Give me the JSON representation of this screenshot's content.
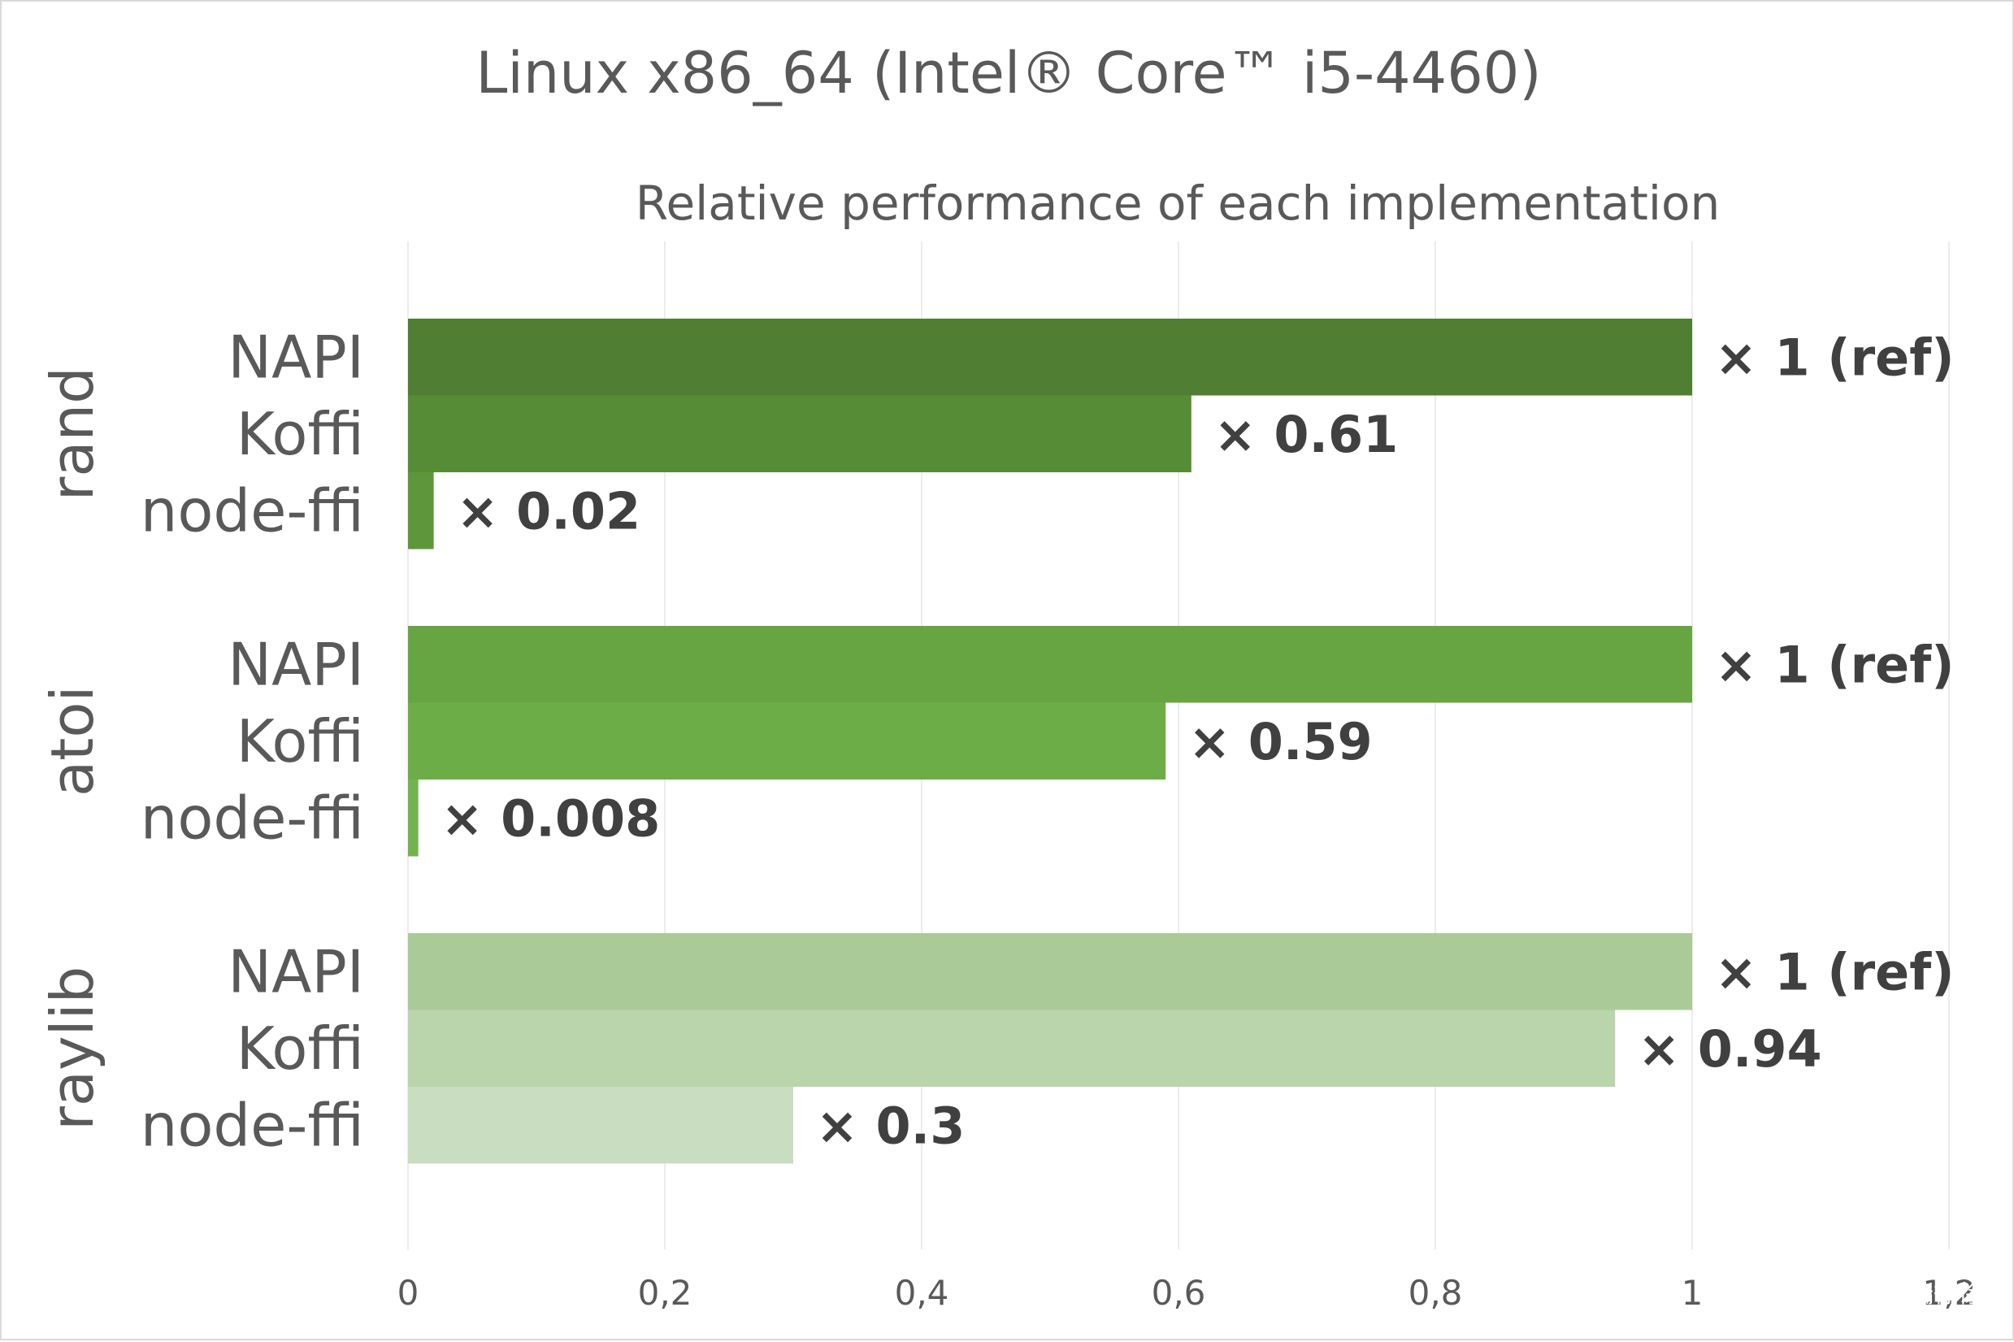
{
  "chart_data": {
    "type": "bar",
    "orientation": "horizontal",
    "title": "Linux x86_64 (Intel® Core™ i5-4460)",
    "subtitle": "Relative performance of each implementation",
    "xlim": [
      0,
      1.2
    ],
    "x_ticks": [
      "0",
      "0,2",
      "0,4",
      "0,6",
      "0,8",
      "1",
      "1,2"
    ],
    "grid": "vertical",
    "groups": [
      {
        "name": "rand",
        "bars": [
          {
            "label": "NAPI",
            "value": 1,
            "value_label": "× 1 (ref)",
            "color": "#507e32"
          },
          {
            "label": "Koffi",
            "value": 0.61,
            "value_label": "× 0.61",
            "color": "#578c36"
          },
          {
            "label": "node-ffi",
            "value": 0.02,
            "value_label": "× 0.02",
            "color": "#5e963b"
          }
        ]
      },
      {
        "name": "atoi",
        "bars": [
          {
            "label": "NAPI",
            "value": 1,
            "value_label": "× 1 (ref)",
            "color": "#67a542"
          },
          {
            "label": "Koffi",
            "value": 0.59,
            "value_label": "× 0.59",
            "color": "#6dad48"
          },
          {
            "label": "node-ffi",
            "value": 0.008,
            "value_label": "× 0.008",
            "color": "#74b24f"
          }
        ]
      },
      {
        "name": "raylib",
        "bars": [
          {
            "label": "NAPI",
            "value": 1,
            "value_label": "× 1 (ref)",
            "color": "#aacb98"
          },
          {
            "label": "Koffi",
            "value": 0.94,
            "value_label": "× 0.94",
            "color": "#bad4ab"
          },
          {
            "label": "node-ffi",
            "value": 0.3,
            "value_label": "× 0.3",
            "color": "#c9dec0"
          }
        ]
      }
    ]
  },
  "watermark": "掘金技术社区 @ 前端徐徐"
}
